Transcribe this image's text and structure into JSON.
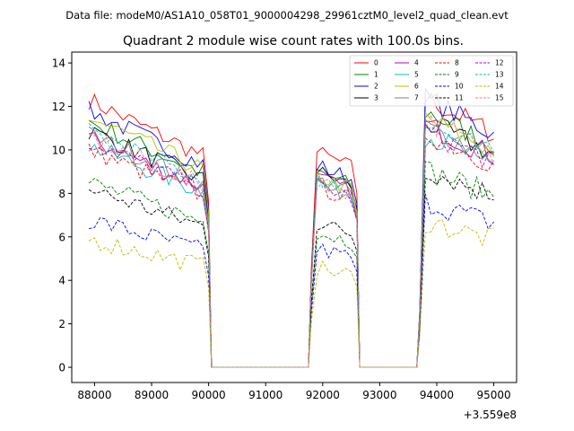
{
  "chart_data": {
    "type": "line",
    "suptitle": "Data file: modeM0/AS1A10_058T01_9000004298_29961cztM0_level2_quad_clean.evt",
    "title": "Quadrant 2 module wise count rates with 100.0s bins.",
    "xlabel": "",
    "ylabel": "",
    "x_offset_label": "+3.559e8",
    "xlim": [
      87600,
      95400
    ],
    "ylim": [
      -0.7,
      14.5
    ],
    "xticks": [
      88000,
      89000,
      90000,
      91000,
      92000,
      93000,
      94000,
      95000
    ],
    "xtick_labels": [
      "88000",
      "89000",
      "90000",
      "91000",
      "92000",
      "93000",
      "94000",
      "95000"
    ],
    "yticks": [
      0,
      2,
      4,
      6,
      8,
      10,
      12,
      14
    ],
    "ytick_labels": [
      "0",
      "2",
      "4",
      "6",
      "8",
      "10",
      "12",
      "14"
    ],
    "legend_position": "top-right",
    "segments": [
      {
        "x_start": 87900,
        "x_end": 90000
      },
      {
        "x_start": 91800,
        "x_end": 92500
      },
      {
        "x_start": 93700,
        "x_end": 95000
      }
    ],
    "gap_intervals": [
      [
        90050,
        91750
      ],
      [
        92650,
        93650
      ]
    ],
    "bin_size": 100,
    "series": [
      {
        "name": "0",
        "color": "#ff0000",
        "dash": false,
        "levels": [
          12.3,
          10.0,
          12.5
        ]
      },
      {
        "name": "1",
        "color": "#008000",
        "dash": false,
        "levels": [
          11.3,
          9.1,
          11.9
        ]
      },
      {
        "name": "2",
        "color": "#0000ff",
        "dash": false,
        "levels": [
          11.8,
          9.4,
          12.5
        ]
      },
      {
        "name": "3",
        "color": "#000000",
        "dash": false,
        "levels": [
          10.9,
          9.1,
          11.4
        ]
      },
      {
        "name": "4",
        "color": "#bf00bf",
        "dash": false,
        "levels": [
          10.5,
          8.8,
          11.3
        ]
      },
      {
        "name": "5",
        "color": "#00bfbf",
        "dash": false,
        "levels": [
          10.2,
          8.6,
          10.8
        ]
      },
      {
        "name": "6",
        "color": "#bfbf00",
        "dash": false,
        "levels": [
          11.5,
          8.9,
          11.6
        ]
      },
      {
        "name": "7",
        "color": "#808080",
        "dash": false,
        "levels": [
          10.7,
          8.7,
          11.2
        ]
      },
      {
        "name": "8",
        "color": "#ff0000",
        "dash": true,
        "levels": [
          10.0,
          8.4,
          10.9
        ]
      },
      {
        "name": "9",
        "color": "#008000",
        "dash": true,
        "levels": [
          8.5,
          6.3,
          9.2
        ]
      },
      {
        "name": "10",
        "color": "#0000ff",
        "dash": true,
        "levels": [
          6.8,
          5.5,
          7.7
        ]
      },
      {
        "name": "11",
        "color": "#000000",
        "dash": true,
        "levels": [
          8.2,
          6.7,
          9.2
        ]
      },
      {
        "name": "12",
        "color": "#bf00bf",
        "dash": true,
        "levels": [
          10.4,
          8.5,
          11.0
        ]
      },
      {
        "name": "13",
        "color": "#00bfbf",
        "dash": true,
        "levels": [
          10.9,
          8.8,
          11.3
        ]
      },
      {
        "name": "14",
        "color": "#bfbf00",
        "dash": true,
        "levels": [
          5.9,
          4.6,
          6.8
        ]
      },
      {
        "name": "15",
        "color": "#f08080",
        "dash": true,
        "levels": [
          10.6,
          8.7,
          11.5
        ]
      }
    ]
  }
}
